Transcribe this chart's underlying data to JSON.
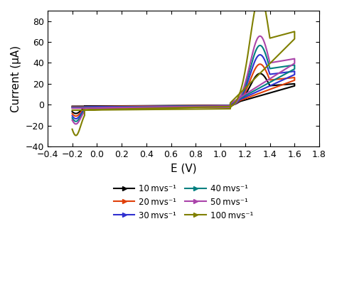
{
  "title": "",
  "xlabel": "E (V)",
  "ylabel": "Current (μA)",
  "xlim": [
    -0.4,
    1.8
  ],
  "ylim": [
    -40,
    90
  ],
  "xticks": [
    -0.4,
    -0.2,
    0.0,
    0.2,
    0.4,
    0.6,
    0.8,
    1.0,
    1.2,
    1.4,
    1.6,
    1.8
  ],
  "yticks": [
    -40,
    -20,
    0,
    20,
    40,
    60,
    80
  ],
  "series": [
    {
      "label": "10 mvs⁻¹",
      "color": "#000000",
      "scale": 1.0
    },
    {
      "label": "20 mvs⁻¹",
      "color": "#e0400a",
      "scale": 1.3
    },
    {
      "label": "30 mvs⁻¹",
      "color": "#3030d0",
      "scale": 1.6
    },
    {
      "label": "40 mvs⁻¹",
      "color": "#008080",
      "scale": 1.9
    },
    {
      "label": "50 mvs⁻¹",
      "color": "#aa44aa",
      "scale": 2.2
    },
    {
      "label": "100 mvs⁻¹",
      "color": "#808000",
      "scale": 3.5
    }
  ],
  "background_color": "#ffffff",
  "lw": 1.5
}
